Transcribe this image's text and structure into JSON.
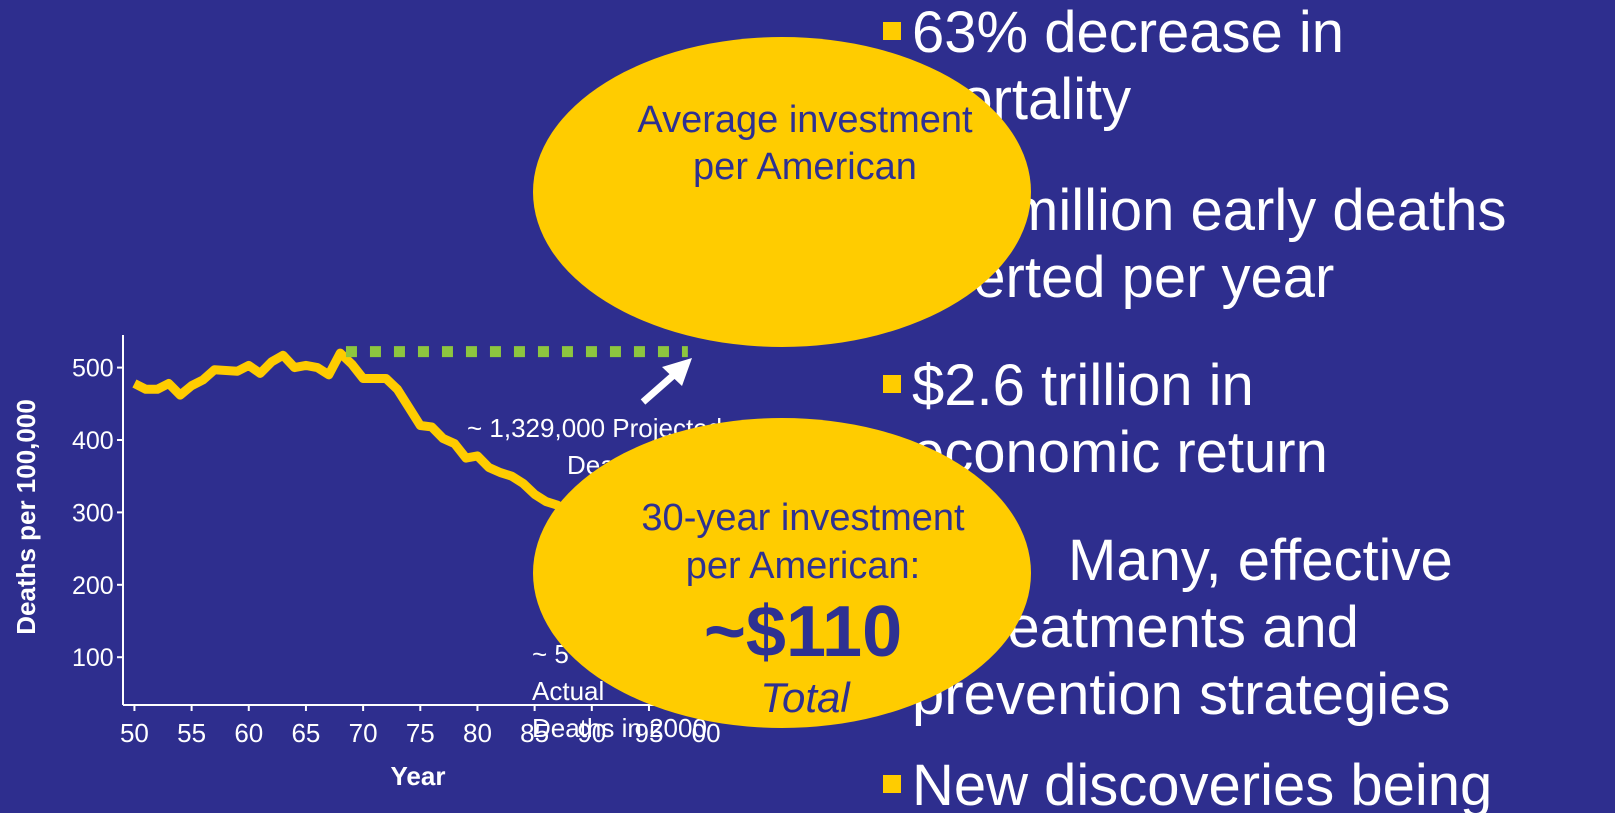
{
  "chart_data": {
    "type": "line",
    "x_label": "Year",
    "y_label": "Deaths per 100,000",
    "series": [
      {
        "color": "#ffcc00",
        "style": "solid",
        "x": [
          50,
          51,
          52,
          53,
          54,
          55,
          56,
          57,
          58,
          59,
          60,
          61,
          62,
          63,
          64,
          65,
          66,
          67,
          68,
          69,
          70,
          71,
          72,
          73,
          74,
          75,
          76,
          77,
          78,
          79,
          80,
          81,
          82,
          83,
          84,
          85,
          86,
          87,
          88
        ],
        "values": [
          478,
          470,
          470,
          478,
          462,
          475,
          483,
          497,
          496,
          495,
          503,
          492,
          508,
          517,
          500,
          503,
          500,
          490,
          520,
          505,
          485,
          485,
          485,
          470,
          445,
          420,
          418,
          402,
          395,
          375,
          378,
          362,
          355,
          350,
          340,
          325,
          315,
          310,
          300
        ]
      },
      {
        "color": "#8dc63f",
        "style": "dotted",
        "x": [
          68.5,
          98.4
        ],
        "values": [
          522,
          522
        ]
      }
    ],
    "xlim": [
      49,
      102
    ],
    "ylim": [
      34,
      545
    ],
    "xticks": [
      50,
      55,
      60,
      65,
      70,
      75,
      80,
      85,
      90,
      95,
      {
        "value": 100,
        "label": "00"
      }
    ],
    "yticks": [
      100,
      200,
      300,
      400,
      500
    ],
    "annotations": [
      {
        "lines": [
          "~ 1,329,000 Projected",
          "Deaths"
        ]
      },
      {
        "lines": [
          "~ 5",
          "Actual",
          "Deaths in 2000"
        ]
      }
    ]
  },
  "bullets": [
    {
      "lines": [
        "63% decrease in",
        "mortality"
      ]
    },
    {
      "lines": [
        "million early deaths",
        "averted per year"
      ]
    },
    {
      "lines": [
        "$2.6 trillion in",
        "economic return"
      ]
    },
    {
      "lines": [
        "Many, effective",
        "treatments and",
        "prevention strategies"
      ]
    },
    {
      "lines": [
        "New discoveries being"
      ]
    }
  ],
  "callouts": [
    {
      "lines": [
        "Average investment",
        "per American"
      ]
    },
    {
      "lines": [
        "30-year investment",
        "per American:"
      ],
      "amount": "~$110",
      "note": "Total"
    }
  ]
}
